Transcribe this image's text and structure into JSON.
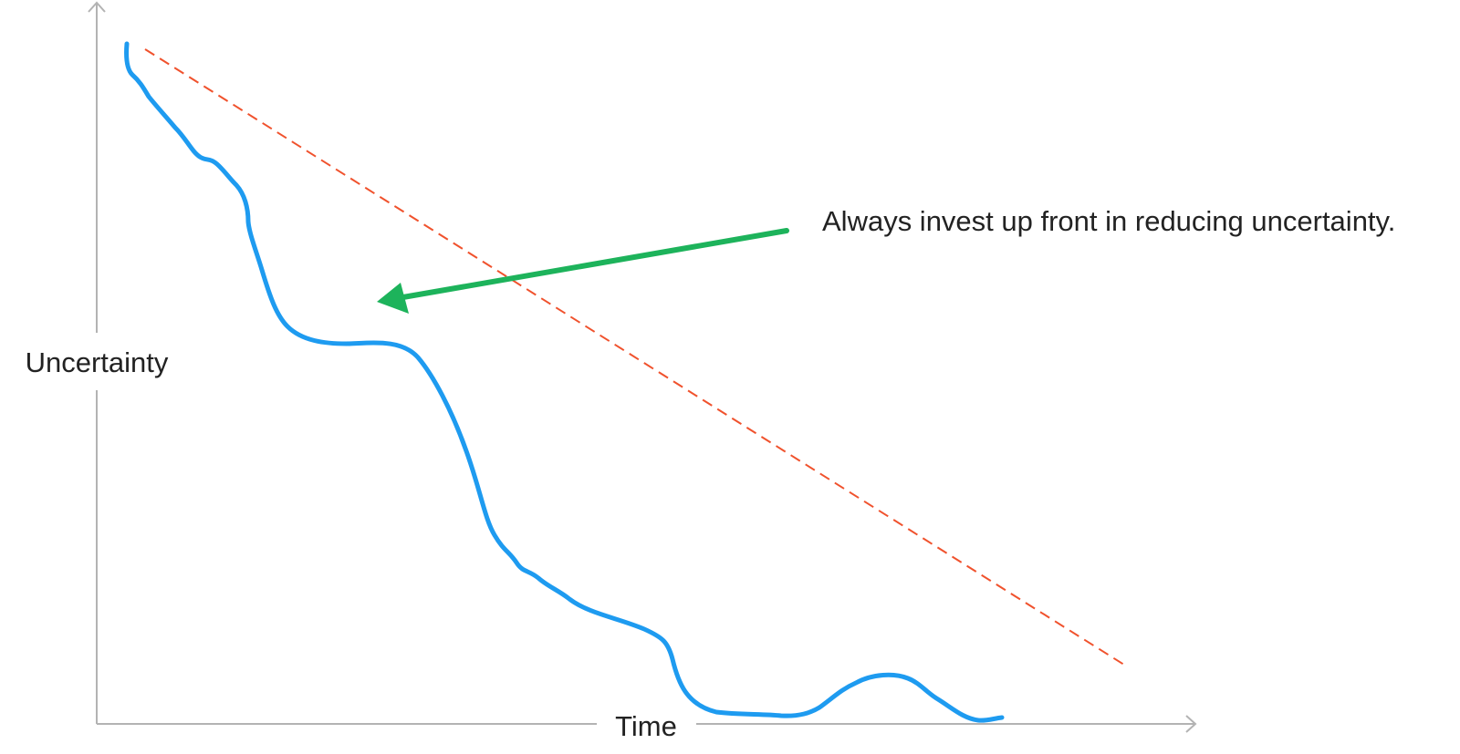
{
  "axes": {
    "y_label": "Uncertainty",
    "x_label": "Time"
  },
  "annotation": {
    "text": "Always invest up front in reducing uncertainty."
  },
  "colors": {
    "axis": "#b3b3b3",
    "actual_curve": "#1e9bf0",
    "reference_line": "#f0522d",
    "arrow": "#1db35b",
    "text": "#222222"
  }
}
